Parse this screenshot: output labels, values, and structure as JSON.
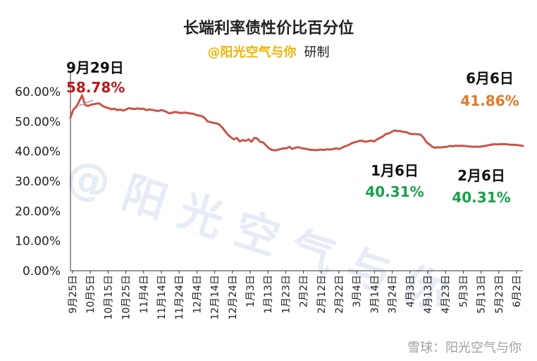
{
  "header": {
    "title": "长端利率债性价比百分位",
    "subtitle_at": "@阳光空气与你",
    "subtitle_suffix": "研制"
  },
  "watermark": "@ 阳 光 空 气 与 你",
  "footer": "雪球：阳光空气与你",
  "chart_data": {
    "type": "line",
    "title": "长端利率债性价比百分位",
    "xlabel": "",
    "ylabel": "",
    "ylim": [
      0,
      0.6
    ],
    "y_ticks": [
      "0.00%",
      "10.00%",
      "20.00%",
      "30.00%",
      "40.00%",
      "50.00%",
      "60.00%"
    ],
    "x_ticks": [
      "9月25日",
      "10月5日",
      "10月15日",
      "10月25日",
      "11月4日",
      "11月14日",
      "11月24日",
      "12月4日",
      "12月14日",
      "12月24日",
      "1月3日",
      "1月13日",
      "1月23日",
      "2月2日",
      "2月12日",
      "2月22日",
      "3月4日",
      "3月14日",
      "3月24日",
      "4月3日",
      "4月13日",
      "4月23日",
      "5月3日",
      "5月13日",
      "5月23日",
      "6月2日"
    ],
    "line_color": "#c9544a",
    "series": [
      {
        "values": [
          [
            0,
            0.513
          ],
          [
            1,
            0.54
          ],
          [
            2,
            0.55
          ],
          [
            3,
            0.568
          ],
          [
            4,
            0.5878
          ],
          [
            5,
            0.555
          ],
          [
            6,
            0.552
          ],
          [
            7,
            0.556
          ],
          [
            8,
            0.558
          ],
          [
            9,
            0.56
          ],
          [
            10,
            0.56
          ],
          [
            11,
            0.552
          ],
          [
            12,
            0.548
          ],
          [
            13,
            0.545
          ],
          [
            14,
            0.541
          ],
          [
            15,
            0.543
          ],
          [
            16,
            0.538
          ],
          [
            17,
            0.54
          ],
          [
            18,
            0.537
          ],
          [
            19,
            0.54
          ],
          [
            20,
            0.545
          ],
          [
            21,
            0.543
          ],
          [
            22,
            0.542
          ],
          [
            23,
            0.544
          ],
          [
            24,
            0.542
          ],
          [
            25,
            0.543
          ],
          [
            26,
            0.538
          ],
          [
            27,
            0.54
          ],
          [
            28,
            0.539
          ],
          [
            29,
            0.537
          ],
          [
            30,
            0.535
          ],
          [
            31,
            0.538
          ],
          [
            32,
            0.536
          ],
          [
            33,
            0.532
          ],
          [
            34,
            0.527
          ],
          [
            35,
            0.53
          ],
          [
            36,
            0.532
          ],
          [
            37,
            0.53
          ],
          [
            38,
            0.528
          ],
          [
            39,
            0.53
          ],
          [
            40,
            0.529
          ],
          [
            41,
            0.527
          ],
          [
            42,
            0.526
          ],
          [
            43,
            0.522
          ],
          [
            44,
            0.52
          ],
          [
            45,
            0.518
          ],
          [
            46,
            0.512
          ],
          [
            47,
            0.5
          ],
          [
            48,
            0.498
          ],
          [
            49,
            0.495
          ],
          [
            50,
            0.494
          ],
          [
            51,
            0.49
          ],
          [
            52,
            0.48
          ],
          [
            53,
            0.467
          ],
          [
            54,
            0.455
          ],
          [
            55,
            0.447
          ],
          [
            56,
            0.44
          ],
          [
            57,
            0.445
          ],
          [
            58,
            0.433
          ],
          [
            59,
            0.438
          ],
          [
            60,
            0.435
          ],
          [
            61,
            0.44
          ],
          [
            62,
            0.432
          ],
          [
            63,
            0.445
          ],
          [
            64,
            0.443
          ],
          [
            65,
            0.432
          ],
          [
            66,
            0.43
          ],
          [
            67,
            0.42
          ],
          [
            68,
            0.41
          ],
          [
            69,
            0.405
          ],
          [
            70,
            0.403
          ],
          [
            71,
            0.405
          ],
          [
            72,
            0.408
          ],
          [
            73,
            0.41
          ],
          [
            74,
            0.41
          ],
          [
            75,
            0.415
          ],
          [
            76,
            0.408
          ],
          [
            77,
            0.412
          ],
          [
            78,
            0.414
          ],
          [
            79,
            0.411
          ],
          [
            80,
            0.409
          ],
          [
            81,
            0.408
          ],
          [
            82,
            0.405
          ],
          [
            83,
            0.405
          ],
          [
            84,
            0.404
          ],
          [
            85,
            0.405
          ],
          [
            86,
            0.406
          ],
          [
            87,
            0.405
          ],
          [
            88,
            0.407
          ],
          [
            89,
            0.406
          ],
          [
            90,
            0.408
          ],
          [
            91,
            0.41
          ],
          [
            92,
            0.408
          ],
          [
            93,
            0.412
          ],
          [
            94,
            0.417
          ],
          [
            95,
            0.42
          ],
          [
            96,
            0.425
          ],
          [
            97,
            0.43
          ],
          [
            98,
            0.432
          ],
          [
            99,
            0.435
          ],
          [
            100,
            0.435
          ],
          [
            101,
            0.432
          ],
          [
            102,
            0.434
          ],
          [
            103,
            0.436
          ],
          [
            104,
            0.433
          ],
          [
            105,
            0.44
          ],
          [
            106,
            0.445
          ],
          [
            107,
            0.45
          ],
          [
            108,
            0.458
          ],
          [
            109,
            0.46
          ],
          [
            110,
            0.465
          ],
          [
            111,
            0.47
          ],
          [
            112,
            0.468
          ],
          [
            113,
            0.468
          ],
          [
            114,
            0.465
          ],
          [
            115,
            0.465
          ],
          [
            116,
            0.46
          ],
          [
            117,
            0.458
          ],
          [
            118,
            0.458
          ],
          [
            119,
            0.457
          ],
          [
            120,
            0.456
          ],
          [
            121,
            0.445
          ],
          [
            122,
            0.43
          ],
          [
            123,
            0.423
          ],
          [
            124,
            0.415
          ],
          [
            125,
            0.412
          ],
          [
            126,
            0.414
          ],
          [
            127,
            0.413
          ],
          [
            128,
            0.415
          ],
          [
            129,
            0.415
          ],
          [
            130,
            0.418
          ],
          [
            131,
            0.417
          ],
          [
            132,
            0.419
          ],
          [
            133,
            0.418
          ],
          [
            134,
            0.419
          ],
          [
            135,
            0.418
          ],
          [
            136,
            0.417
          ],
          [
            137,
            0.416
          ],
          [
            138,
            0.415
          ],
          [
            139,
            0.416
          ],
          [
            140,
            0.415
          ],
          [
            141,
            0.417
          ],
          [
            142,
            0.418
          ],
          [
            143,
            0.42
          ],
          [
            144,
            0.422
          ],
          [
            145,
            0.424
          ],
          [
            146,
            0.423
          ],
          [
            147,
            0.424
          ],
          [
            148,
            0.424
          ],
          [
            149,
            0.424
          ],
          [
            150,
            0.423
          ],
          [
            151,
            0.422
          ],
          [
            152,
            0.422
          ],
          [
            153,
            0.421
          ],
          [
            154,
            0.42
          ],
          [
            155,
            0.418
          ]
        ]
      }
    ],
    "annotations": [
      {
        "date": "9月29日",
        "value": "58.78%",
        "color": "#c0161a"
      },
      {
        "date": "1月6日",
        "value": "40.31%",
        "color": "#18a04a"
      },
      {
        "date": "2月6日",
        "value": "40.31%",
        "color": "#18a04a"
      },
      {
        "date": "6月6日",
        "value": "41.86%",
        "color": "#e07a2a"
      }
    ]
  }
}
